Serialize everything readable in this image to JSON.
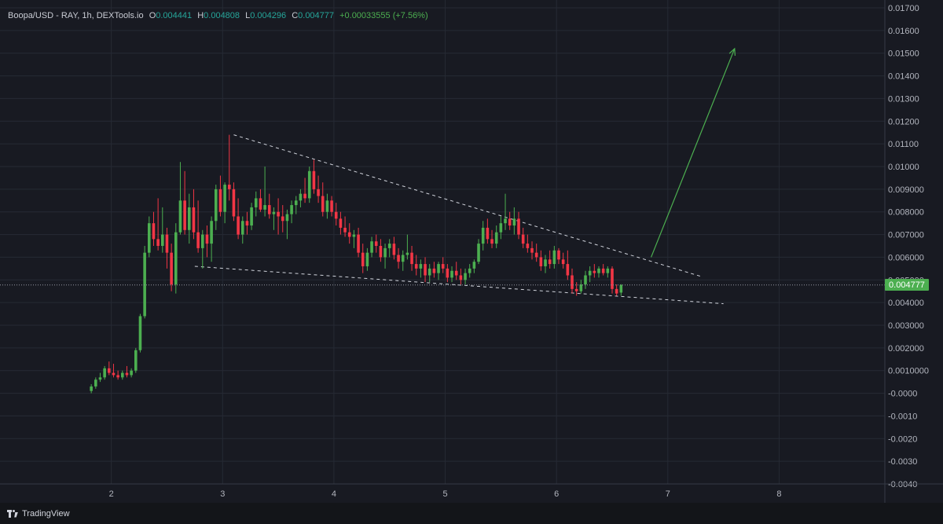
{
  "header": {
    "symbol": "Boopa/USD - RAY, 1h, DEXTools.io",
    "o_label": "O",
    "o_value": "0.004441",
    "h_label": "H",
    "h_value": "0.004808",
    "l_label": "L",
    "l_value": "0.004296",
    "c_label": "C",
    "c_value": "0.004777",
    "change": "+0.00033555 (+7.56%)"
  },
  "last_price_label": "0.004777",
  "footer": {
    "brand": "TradingView"
  },
  "colors": {
    "background": "#181a22",
    "up": "#4caf50",
    "down": "#f23645",
    "grid": "#262a34",
    "trendline": "#d1d4dc",
    "arrow": "#4caf50"
  },
  "chart_data": {
    "type": "candlestick",
    "x_ticks": [
      "2",
      "3",
      "4",
      "5",
      "6",
      "7",
      "8"
    ],
    "y_ticks": [
      "0.01700",
      "0.01600",
      "0.01500",
      "0.01400",
      "0.01300",
      "0.01200",
      "0.01100",
      "0.01000",
      "0.009000",
      "0.008000",
      "0.007000",
      "0.006000",
      "0.005000",
      "0.004000",
      "0.003000",
      "0.002000",
      "0.0010000",
      "-0.0000",
      "-0.0010",
      "-0.0020",
      "-0.0030",
      "-0.0040"
    ],
    "ylim": [
      -0.004,
      0.017
    ],
    "xlim": [
      1.0,
      8.95
    ],
    "grid": true,
    "last_price": 0.004777,
    "candles": [
      [
        1.82,
        0.0001,
        0.0004,
        0.0,
        0.0003
      ],
      [
        1.86,
        0.0003,
        0.0007,
        0.0002,
        0.0006
      ],
      [
        1.9,
        0.0006,
        0.0009,
        0.0005,
        0.0007
      ],
      [
        1.94,
        0.0007,
        0.0012,
        0.0006,
        0.0011
      ],
      [
        1.98,
        0.0011,
        0.0014,
        0.0008,
        0.0009
      ],
      [
        2.02,
        0.0009,
        0.0013,
        0.0007,
        0.0008
      ],
      [
        2.06,
        0.0008,
        0.001,
        0.0006,
        0.0007
      ],
      [
        2.1,
        0.0007,
        0.001,
        0.0006,
        0.0009
      ],
      [
        2.14,
        0.0009,
        0.0012,
        0.0007,
        0.0008
      ],
      [
        2.18,
        0.0008,
        0.0011,
        0.0007,
        0.001
      ],
      [
        2.22,
        0.001,
        0.002,
        0.0009,
        0.0019
      ],
      [
        2.26,
        0.0019,
        0.0035,
        0.0018,
        0.0034
      ],
      [
        2.3,
        0.0034,
        0.0065,
        0.0033,
        0.0062
      ],
      [
        2.34,
        0.0062,
        0.0078,
        0.006,
        0.0075
      ],
      [
        2.38,
        0.0075,
        0.008,
        0.0065,
        0.0068
      ],
      [
        2.42,
        0.0068,
        0.0086,
        0.0063,
        0.0065
      ],
      [
        2.46,
        0.0065,
        0.0082,
        0.0062,
        0.007
      ],
      [
        2.5,
        0.007,
        0.0073,
        0.0055,
        0.0062
      ],
      [
        2.54,
        0.0062,
        0.0066,
        0.0045,
        0.0048
      ],
      [
        2.58,
        0.0048,
        0.0075,
        0.0044,
        0.0071
      ],
      [
        2.62,
        0.0071,
        0.0102,
        0.007,
        0.0085
      ],
      [
        2.66,
        0.0085,
        0.0098,
        0.007,
        0.0072
      ],
      [
        2.7,
        0.0072,
        0.0088,
        0.0066,
        0.0082
      ],
      [
        2.74,
        0.0082,
        0.009,
        0.0068,
        0.0071
      ],
      [
        2.78,
        0.0071,
        0.0085,
        0.0062,
        0.0064
      ],
      [
        2.82,
        0.0064,
        0.0072,
        0.0055,
        0.007
      ],
      [
        2.86,
        0.007,
        0.0074,
        0.006,
        0.0066
      ],
      [
        2.9,
        0.0066,
        0.0078,
        0.0058,
        0.0076
      ],
      [
        2.94,
        0.0076,
        0.0092,
        0.0072,
        0.009
      ],
      [
        2.98,
        0.009,
        0.0096,
        0.0078,
        0.008
      ],
      [
        3.02,
        0.008,
        0.0093,
        0.0075,
        0.0092
      ],
      [
        3.06,
        0.0092,
        0.0114,
        0.0085,
        0.009
      ],
      [
        3.1,
        0.009,
        0.0093,
        0.0076,
        0.0078
      ],
      [
        3.14,
        0.0078,
        0.0086,
        0.0068,
        0.007
      ],
      [
        3.18,
        0.007,
        0.0078,
        0.0066,
        0.0076
      ],
      [
        3.22,
        0.0076,
        0.008,
        0.007,
        0.0074
      ],
      [
        3.26,
        0.0074,
        0.0084,
        0.0072,
        0.0082
      ],
      [
        3.3,
        0.0082,
        0.0089,
        0.0078,
        0.0086
      ],
      [
        3.34,
        0.0086,
        0.009,
        0.008,
        0.0081
      ],
      [
        3.38,
        0.0081,
        0.01,
        0.0078,
        0.0083
      ],
      [
        3.42,
        0.0083,
        0.0088,
        0.0077,
        0.0079
      ],
      [
        3.46,
        0.0079,
        0.0082,
        0.0072,
        0.008
      ],
      [
        3.5,
        0.008,
        0.0086,
        0.007,
        0.0078
      ],
      [
        3.54,
        0.0078,
        0.0083,
        0.0071,
        0.0076
      ],
      [
        3.58,
        0.0076,
        0.0081,
        0.0068,
        0.0079
      ],
      [
        3.62,
        0.0079,
        0.0085,
        0.0075,
        0.0083
      ],
      [
        3.66,
        0.0083,
        0.0087,
        0.0079,
        0.0085
      ],
      [
        3.7,
        0.0085,
        0.009,
        0.0082,
        0.0088
      ],
      [
        3.74,
        0.0088,
        0.0095,
        0.0084,
        0.0086
      ],
      [
        3.78,
        0.0086,
        0.01,
        0.0084,
        0.0098
      ],
      [
        3.82,
        0.0098,
        0.0103,
        0.0088,
        0.009
      ],
      [
        3.86,
        0.009,
        0.0096,
        0.0084,
        0.0087
      ],
      [
        3.9,
        0.0087,
        0.0093,
        0.0078,
        0.008
      ],
      [
        3.94,
        0.008,
        0.0088,
        0.0077,
        0.0085
      ],
      [
        3.98,
        0.0085,
        0.0087,
        0.0078,
        0.008
      ],
      [
        4.02,
        0.008,
        0.0084,
        0.0074,
        0.0077
      ],
      [
        4.06,
        0.0077,
        0.008,
        0.007,
        0.0073
      ],
      [
        4.1,
        0.0073,
        0.0078,
        0.0069,
        0.0071
      ],
      [
        4.14,
        0.0071,
        0.0075,
        0.0066,
        0.0069
      ],
      [
        4.18,
        0.0069,
        0.0072,
        0.0064,
        0.007
      ],
      [
        4.22,
        0.007,
        0.0073,
        0.006,
        0.0062
      ],
      [
        4.26,
        0.0062,
        0.0066,
        0.0053,
        0.0056
      ],
      [
        4.3,
        0.0056,
        0.0064,
        0.0054,
        0.0062
      ],
      [
        4.34,
        0.0062,
        0.0069,
        0.006,
        0.0067
      ],
      [
        4.38,
        0.0067,
        0.007,
        0.0062,
        0.0065
      ],
      [
        4.42,
        0.0065,
        0.0068,
        0.0058,
        0.006
      ],
      [
        4.46,
        0.006,
        0.0066,
        0.0055,
        0.0064
      ],
      [
        4.5,
        0.0064,
        0.0068,
        0.006,
        0.0066
      ],
      [
        4.54,
        0.0066,
        0.0069,
        0.0059,
        0.0061
      ],
      [
        4.58,
        0.0061,
        0.0064,
        0.0055,
        0.0058
      ],
      [
        4.62,
        0.0058,
        0.0063,
        0.0054,
        0.0061
      ],
      [
        4.66,
        0.0061,
        0.007,
        0.0059,
        0.0062
      ],
      [
        4.7,
        0.0062,
        0.0065,
        0.0054,
        0.0057
      ],
      [
        4.74,
        0.0057,
        0.0061,
        0.0052,
        0.0055
      ],
      [
        4.78,
        0.0055,
        0.0059,
        0.0051,
        0.0057
      ],
      [
        4.82,
        0.0057,
        0.006,
        0.0049,
        0.0052
      ],
      [
        4.86,
        0.0052,
        0.0057,
        0.0049,
        0.0055
      ],
      [
        4.9,
        0.0055,
        0.0058,
        0.0051,
        0.0053
      ],
      [
        4.94,
        0.0053,
        0.0058,
        0.005,
        0.0057
      ],
      [
        4.98,
        0.0057,
        0.006,
        0.0053,
        0.0055
      ],
      [
        5.02,
        0.0055,
        0.0057,
        0.0049,
        0.0051
      ],
      [
        5.06,
        0.0051,
        0.0056,
        0.0049,
        0.0054
      ],
      [
        5.1,
        0.0054,
        0.0058,
        0.005,
        0.0052
      ],
      [
        5.14,
        0.0052,
        0.0055,
        0.0048,
        0.005
      ],
      [
        5.18,
        0.005,
        0.0055,
        0.0048,
        0.0053
      ],
      [
        5.22,
        0.0053,
        0.0057,
        0.0051,
        0.0055
      ],
      [
        5.26,
        0.0055,
        0.0059,
        0.0053,
        0.0058
      ],
      [
        5.3,
        0.0058,
        0.0068,
        0.0057,
        0.0066
      ],
      [
        5.34,
        0.0066,
        0.0076,
        0.0063,
        0.0073
      ],
      [
        5.38,
        0.0073,
        0.0077,
        0.0066,
        0.0068
      ],
      [
        5.42,
        0.0068,
        0.0072,
        0.0064,
        0.0066
      ],
      [
        5.46,
        0.0066,
        0.0074,
        0.0064,
        0.0071
      ],
      [
        5.5,
        0.0071,
        0.0078,
        0.0068,
        0.0075
      ],
      [
        5.54,
        0.0075,
        0.0088,
        0.0072,
        0.0077
      ],
      [
        5.58,
        0.0077,
        0.008,
        0.0072,
        0.0074
      ],
      [
        5.62,
        0.0074,
        0.0082,
        0.007,
        0.0077
      ],
      [
        5.66,
        0.0077,
        0.008,
        0.0068,
        0.007
      ],
      [
        5.7,
        0.007,
        0.0073,
        0.0064,
        0.0066
      ],
      [
        5.74,
        0.0066,
        0.007,
        0.0062,
        0.0064
      ],
      [
        5.78,
        0.0064,
        0.0067,
        0.0059,
        0.0062
      ],
      [
        5.82,
        0.0062,
        0.0066,
        0.0058,
        0.006
      ],
      [
        5.86,
        0.006,
        0.0063,
        0.0054,
        0.0056
      ],
      [
        5.9,
        0.0056,
        0.0061,
        0.0053,
        0.0059
      ],
      [
        5.94,
        0.0059,
        0.0063,
        0.0055,
        0.0057
      ],
      [
        5.98,
        0.0057,
        0.0065,
        0.0055,
        0.0063
      ],
      [
        6.02,
        0.0063,
        0.0064,
        0.0057,
        0.0059
      ],
      [
        6.06,
        0.0059,
        0.0062,
        0.0055,
        0.0057
      ],
      [
        6.1,
        0.0057,
        0.0063,
        0.005,
        0.0052
      ],
      [
        6.14,
        0.0052,
        0.0055,
        0.0044,
        0.0046
      ],
      [
        6.18,
        0.0046,
        0.0049,
        0.0043,
        0.0045
      ],
      [
        6.22,
        0.0045,
        0.005,
        0.0044,
        0.0048
      ],
      [
        6.26,
        0.0048,
        0.0054,
        0.0046,
        0.0052
      ],
      [
        6.3,
        0.0052,
        0.0056,
        0.0049,
        0.0054
      ],
      [
        6.34,
        0.0054,
        0.0057,
        0.0051,
        0.0053
      ],
      [
        6.38,
        0.0053,
        0.0056,
        0.0051,
        0.0055
      ],
      [
        6.42,
        0.0055,
        0.0057,
        0.0052,
        0.0053
      ],
      [
        6.46,
        0.0053,
        0.0056,
        0.0051,
        0.0055
      ],
      [
        6.5,
        0.0055,
        0.0056,
        0.0044,
        0.0046
      ],
      [
        6.54,
        0.0046,
        0.0048,
        0.0043,
        0.0044
      ],
      [
        6.58,
        0.00444,
        0.00481,
        0.0043,
        0.00478
      ]
    ],
    "annotations": {
      "upper_trendline": [
        [
          3.1,
          0.0114
        ],
        [
          7.3,
          0.00515
        ]
      ],
      "lower_trendline": [
        [
          2.75,
          0.0056
        ],
        [
          7.5,
          0.00395
        ]
      ],
      "arrow": [
        [
          6.85,
          0.006
        ],
        [
          7.6,
          0.0152
        ]
      ]
    }
  }
}
